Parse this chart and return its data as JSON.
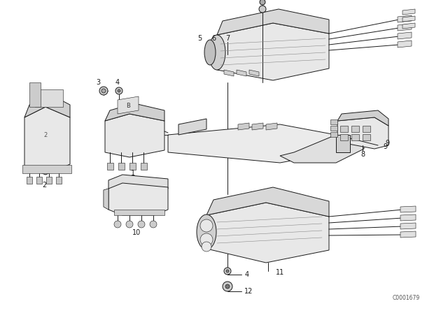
{
  "bg_color": "#ffffff",
  "figsize": [
    6.4,
    4.48
  ],
  "dpi": 100,
  "lc": "#1a1a1a",
  "lc_light": "#555555",
  "fc_body": "#f0f0f0",
  "fc_dark": "#cccccc",
  "fc_white": "#ffffff",
  "lw": 0.7,
  "lw_thin": 0.4,
  "copyright": "C0001679"
}
